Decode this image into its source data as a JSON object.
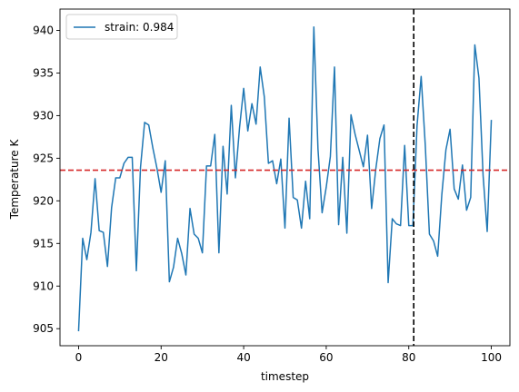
{
  "chart_data": {
    "type": "line",
    "title": "",
    "xlabel": "timestep",
    "ylabel": "Temperature K",
    "xlim": [
      -4.5,
      104.5
    ],
    "ylim": [
      903.0,
      942.5
    ],
    "xticks": [
      0,
      20,
      40,
      60,
      80,
      100
    ],
    "yticks": [
      905,
      910,
      915,
      920,
      925,
      930,
      935,
      940
    ],
    "grid": false,
    "legend_position": "top-left",
    "series": [
      {
        "name": "strain: 0.984",
        "color": "#1f77b4",
        "x": [
          0,
          1,
          2,
          3,
          4,
          5,
          6,
          7,
          8,
          9,
          10,
          11,
          12,
          13,
          14,
          15,
          16,
          17,
          18,
          19,
          20,
          21,
          22,
          23,
          24,
          25,
          26,
          27,
          28,
          29,
          30,
          31,
          32,
          33,
          34,
          35,
          36,
          37,
          38,
          39,
          40,
          41,
          42,
          43,
          44,
          45,
          46,
          47,
          48,
          49,
          50,
          51,
          52,
          53,
          54,
          55,
          56,
          57,
          58,
          59,
          60,
          61,
          62,
          63,
          64,
          65,
          66,
          67,
          68,
          69,
          70,
          71,
          72,
          73,
          74,
          75,
          76,
          77,
          78,
          79,
          80,
          81,
          82,
          83,
          84,
          85,
          86,
          87,
          88,
          89,
          90,
          91,
          92,
          93,
          94,
          95,
          96,
          97,
          98,
          99,
          100
        ],
        "y": [
          904.7,
          915.6,
          913.1,
          916.3,
          922.6,
          916.5,
          916.3,
          912.3,
          919.2,
          922.7,
          922.7,
          924.4,
          925.1,
          925.1,
          911.8,
          923.9,
          929.2,
          928.9,
          926.2,
          923.8,
          921.0,
          924.7,
          910.5,
          912.2,
          915.6,
          913.8,
          911.3,
          919.1,
          916.1,
          915.6,
          913.9,
          924.1,
          924.1,
          927.8,
          913.9,
          926.4,
          920.8,
          931.2,
          922.7,
          928.6,
          933.2,
          928.2,
          931.4,
          929.0,
          935.7,
          932.2,
          924.4,
          924.7,
          922.0,
          924.9,
          916.8,
          929.7,
          920.4,
          920.1,
          916.8,
          922.3,
          917.9,
          940.4,
          926.1,
          918.6,
          921.6,
          925.2,
          935.7,
          917.2,
          925.1,
          916.2,
          930.1,
          927.8,
          925.9,
          924.0,
          927.7,
          919.1,
          923.7,
          927.3,
          928.9,
          910.4,
          917.9,
          917.3,
          917.1,
          926.5,
          917.1,
          917.1,
          928.8,
          934.6,
          926.5,
          916.1,
          915.3,
          913.5,
          920.7,
          926.0,
          928.4,
          921.4,
          920.2,
          924.2,
          918.9,
          920.4,
          938.3,
          934.4,
          923.0,
          916.4,
          929.5
        ]
      }
    ],
    "reference_lines": [
      {
        "orientation": "horizontal",
        "value": 923.6,
        "color": "#d62728",
        "style": "dashed"
      },
      {
        "orientation": "vertical",
        "value": 81.2,
        "color": "#000000",
        "style": "dashed"
      }
    ]
  }
}
